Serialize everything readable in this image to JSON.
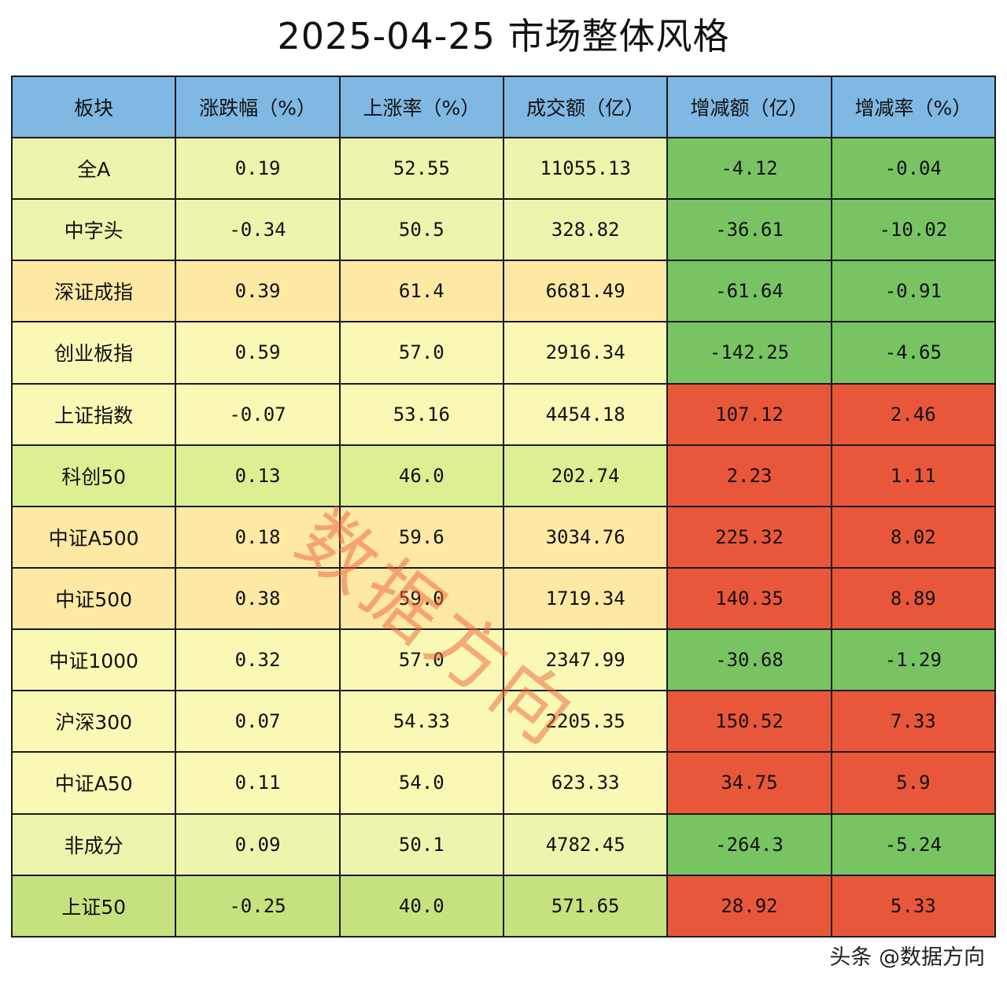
{
  "title": "2025-04-25 市场整体风格",
  "watermark": "数据方向",
  "footer": "头条 @数据方向",
  "colors": {
    "header": "#7fb8e3",
    "yellow_light": "#f9f9b5",
    "yellow_green": "#eef4ad",
    "green_light": "#dcef92",
    "green_mid": "#c5e27f",
    "orange_light": "#fde8a4",
    "green_strong": "#78c463",
    "red_strong": "#e9573b"
  },
  "chart_data": {
    "type": "table",
    "title": "2025-04-25 市场整体风格",
    "columns": [
      "板块",
      "涨跌幅（%）",
      "上涨率（%）",
      "成交额（亿）",
      "增减额（亿）",
      "增减率（%）"
    ],
    "rows": [
      {
        "name": "全A",
        "cells": [
          "0.19",
          "52.55",
          "11055.13",
          "-4.12",
          "-0.04"
        ],
        "bg": "#eef4ad",
        "change_bg": "#78c463"
      },
      {
        "name": "中字头",
        "cells": [
          "-0.34",
          "50.5",
          "328.82",
          "-36.61",
          "-10.02"
        ],
        "bg": "#eef4ad",
        "change_bg": "#78c463"
      },
      {
        "name": "深证成指",
        "cells": [
          "0.39",
          "61.4",
          "6681.49",
          "-61.64",
          "-0.91"
        ],
        "bg": "#fde8a4",
        "change_bg": "#78c463"
      },
      {
        "name": "创业板指",
        "cells": [
          "0.59",
          "57.0",
          "2916.34",
          "-142.25",
          "-4.65"
        ],
        "bg": "#f9f9b5",
        "change_bg": "#78c463"
      },
      {
        "name": "上证指数",
        "cells": [
          "-0.07",
          "53.16",
          "4454.18",
          "107.12",
          "2.46"
        ],
        "bg": "#f9f9b5",
        "change_bg": "#e9573b"
      },
      {
        "name": "科创50",
        "cells": [
          "0.13",
          "46.0",
          "202.74",
          "2.23",
          "1.11"
        ],
        "bg": "#dcef92",
        "change_bg": "#e9573b"
      },
      {
        "name": "中证A500",
        "cells": [
          "0.18",
          "59.6",
          "3034.76",
          "225.32",
          "8.02"
        ],
        "bg": "#fde8a4",
        "change_bg": "#e9573b"
      },
      {
        "name": "中证500",
        "cells": [
          "0.38",
          "59.0",
          "1719.34",
          "140.35",
          "8.89"
        ],
        "bg": "#fde8a4",
        "change_bg": "#e9573b"
      },
      {
        "name": "中证1000",
        "cells": [
          "0.32",
          "57.0",
          "2347.99",
          "-30.68",
          "-1.29"
        ],
        "bg": "#f9f9b5",
        "change_bg": "#78c463"
      },
      {
        "name": "沪深300",
        "cells": [
          "0.07",
          "54.33",
          "2205.35",
          "150.52",
          "7.33"
        ],
        "bg": "#f9f9b5",
        "change_bg": "#e9573b"
      },
      {
        "name": "中证A50",
        "cells": [
          "0.11",
          "54.0",
          "623.33",
          "34.75",
          "5.9"
        ],
        "bg": "#f9f9b5",
        "change_bg": "#e9573b"
      },
      {
        "name": "非成分",
        "cells": [
          "0.09",
          "50.1",
          "4782.45",
          "-264.3",
          "-5.24"
        ],
        "bg": "#eef4ad",
        "change_bg": "#78c463"
      },
      {
        "name": "上证50",
        "cells": [
          "-0.25",
          "40.0",
          "571.65",
          "28.92",
          "5.33"
        ],
        "bg": "#c5e27f",
        "change_bg": "#e9573b"
      }
    ]
  }
}
